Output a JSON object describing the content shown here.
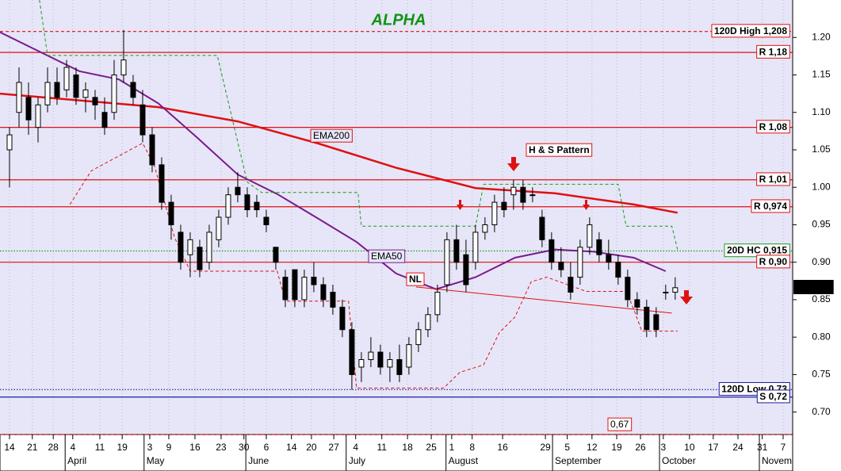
{
  "chart_data": {
    "type": "candlestick",
    "title": "ALPHA",
    "ylim": [
      0.67,
      1.25
    ],
    "yticks": [
      {
        "value": 0.7,
        "label": "0.70"
      },
      {
        "value": 0.75,
        "label": "0.75"
      },
      {
        "value": 0.8,
        "label": "0.80"
      },
      {
        "value": 0.85,
        "label": "0.85"
      },
      {
        "value": 0.9,
        "label": "0.90"
      },
      {
        "value": 0.95,
        "label": "0.95"
      },
      {
        "value": 1.0,
        "label": "1.00"
      },
      {
        "value": 1.05,
        "label": "1.05"
      },
      {
        "value": 1.1,
        "label": "1.10"
      },
      {
        "value": 1.15,
        "label": "1.15"
      },
      {
        "value": 1.2,
        "label": "1.20"
      }
    ],
    "xlim": [
      -2,
      164.7
    ],
    "xticks": [
      {
        "value": 0,
        "label": "14"
      },
      {
        "value": 4.8,
        "label": "21"
      },
      {
        "value": 9.2,
        "label": "28"
      },
      {
        "value": 13.3,
        "label": "4"
      },
      {
        "value": 19,
        "label": "11"
      },
      {
        "value": 23.7,
        "label": "19"
      },
      {
        "value": 29.5,
        "label": "3"
      },
      {
        "value": 33.5,
        "label": "9"
      },
      {
        "value": 39,
        "label": "16"
      },
      {
        "value": 44.5,
        "label": "23"
      },
      {
        "value": 49.3,
        "label": "30"
      },
      {
        "value": 54,
        "label": "6"
      },
      {
        "value": 59.3,
        "label": "14"
      },
      {
        "value": 63.5,
        "label": "20"
      },
      {
        "value": 68.2,
        "label": "27"
      },
      {
        "value": 72.8,
        "label": "4"
      },
      {
        "value": 78.3,
        "label": "11"
      },
      {
        "value": 83.7,
        "label": "18"
      },
      {
        "value": 88.7,
        "label": "25"
      },
      {
        "value": 93,
        "label": "1"
      },
      {
        "value": 97.3,
        "label": "8"
      },
      {
        "value": 103.7,
        "label": "16"
      },
      {
        "value": 112.7,
        "label": "29"
      },
      {
        "value": 117.3,
        "label": "5"
      },
      {
        "value": 122.5,
        "label": "12"
      },
      {
        "value": 127.7,
        "label": "19"
      },
      {
        "value": 132.7,
        "label": "26"
      },
      {
        "value": 137.5,
        "label": "3"
      },
      {
        "value": 143,
        "label": "10"
      },
      {
        "value": 148,
        "label": "17"
      },
      {
        "value": 153.2,
        "label": "24"
      },
      {
        "value": 158.3,
        "label": "31"
      },
      {
        "value": 162.7,
        "label": "7"
      }
    ],
    "months": [
      {
        "value": 11.7,
        "label": "April"
      },
      {
        "value": 28.3,
        "label": "May"
      },
      {
        "value": 49.7,
        "label": "June"
      },
      {
        "value": 70.8,
        "label": "July"
      },
      {
        "value": 91.8,
        "label": "August"
      },
      {
        "value": 114.2,
        "label": "September"
      },
      {
        "value": 136.7,
        "label": "October"
      },
      {
        "value": 157.7,
        "label": "Novem"
      }
    ],
    "grid": true,
    "up_color": "#ffffff",
    "down_color": "#000000",
    "x": [
      0,
      2,
      4,
      6,
      8,
      10,
      12,
      14,
      16,
      18,
      20,
      22,
      24,
      26,
      28,
      30,
      32,
      34,
      36,
      38,
      40,
      42,
      44,
      46,
      48,
      50,
      52,
      54,
      56,
      58,
      60,
      62,
      64,
      66,
      68,
      70,
      72,
      74,
      76,
      78,
      80,
      82,
      84,
      86,
      88,
      90,
      92,
      94,
      96,
      98,
      100,
      102,
      104,
      106,
      108,
      110,
      112,
      114,
      116,
      118,
      120,
      122,
      124,
      126,
      128,
      130,
      132,
      134,
      136,
      138,
      140
    ],
    "open": [
      1.05,
      1.1,
      1.12,
      1.08,
      1.11,
      1.14,
      1.13,
      1.15,
      1.12,
      1.12,
      1.1,
      1.1,
      1.15,
      1.14,
      1.11,
      1.07,
      1.03,
      0.98,
      0.94,
      0.91,
      0.92,
      0.9,
      0.93,
      0.96,
      1.0,
      0.99,
      0.98,
      0.96,
      0.92,
      0.88,
      0.89,
      0.85,
      0.88,
      0.87,
      0.86,
      0.84,
      0.81,
      0.76,
      0.77,
      0.78,
      0.76,
      0.77,
      0.76,
      0.79,
      0.81,
      0.83,
      0.87,
      0.93,
      0.91,
      0.9,
      0.94,
      0.95,
      0.98,
      0.99,
      1.0,
      0.99,
      0.96,
      0.93,
      0.9,
      0.88,
      0.88,
      0.92,
      0.93,
      0.91,
      0.9,
      0.88,
      0.85,
      0.84,
      0.83,
      0.86,
      0.86
    ],
    "high": [
      1.08,
      1.16,
      1.14,
      1.12,
      1.16,
      1.16,
      1.17,
      1.16,
      1.14,
      1.13,
      1.12,
      1.17,
      1.21,
      1.15,
      1.13,
      1.08,
      1.04,
      0.99,
      0.95,
      0.94,
      0.93,
      0.95,
      0.97,
      1.0,
      1.02,
      1.0,
      0.99,
      0.97,
      0.92,
      0.89,
      0.89,
      0.89,
      0.9,
      0.88,
      0.87,
      0.85,
      0.82,
      0.78,
      0.8,
      0.79,
      0.78,
      0.79,
      0.8,
      0.82,
      0.84,
      0.87,
      0.94,
      0.95,
      0.93,
      0.95,
      0.96,
      0.99,
      1.0,
      1.01,
      1.01,
      1.0,
      0.97,
      0.94,
      0.92,
      0.9,
      0.93,
      0.96,
      0.94,
      0.93,
      0.91,
      0.89,
      0.86,
      0.85,
      0.84,
      0.87,
      0.88
    ],
    "low": [
      1.0,
      1.08,
      1.07,
      1.06,
      1.1,
      1.11,
      1.12,
      1.11,
      1.1,
      1.09,
      1.07,
      1.09,
      1.14,
      1.11,
      1.06,
      1.02,
      0.97,
      0.93,
      0.89,
      0.88,
      0.88,
      0.89,
      0.92,
      0.95,
      0.98,
      0.96,
      0.96,
      0.94,
      0.89,
      0.84,
      0.84,
      0.84,
      0.86,
      0.84,
      0.83,
      0.8,
      0.73,
      0.74,
      0.76,
      0.75,
      0.74,
      0.74,
      0.75,
      0.78,
      0.8,
      0.82,
      0.86,
      0.89,
      0.86,
      0.89,
      0.93,
      0.94,
      0.96,
      0.97,
      0.97,
      0.98,
      0.92,
      0.89,
      0.88,
      0.85,
      0.87,
      0.91,
      0.9,
      0.89,
      0.87,
      0.84,
      0.83,
      0.8,
      0.8,
      0.85,
      0.85
    ],
    "close": [
      1.07,
      1.14,
      1.09,
      1.11,
      1.14,
      1.12,
      1.16,
      1.12,
      1.13,
      1.11,
      1.08,
      1.15,
      1.17,
      1.12,
      1.07,
      1.03,
      0.98,
      0.95,
      0.9,
      0.93,
      0.89,
      0.94,
      0.96,
      0.99,
      0.99,
      0.97,
      0.97,
      0.95,
      0.9,
      0.85,
      0.85,
      0.88,
      0.87,
      0.85,
      0.84,
      0.81,
      0.75,
      0.77,
      0.78,
      0.76,
      0.77,
      0.75,
      0.79,
      0.81,
      0.83,
      0.86,
      0.93,
      0.9,
      0.87,
      0.94,
      0.95,
      0.98,
      0.97,
      1.0,
      0.98,
      0.99,
      0.93,
      0.9,
      0.89,
      0.86,
      0.92,
      0.95,
      0.91,
      0.9,
      0.88,
      0.85,
      0.84,
      0.81,
      0.81,
      0.86,
      0.866
    ],
    "last_price": {
      "value": 0.866,
      "label": "0.86600"
    },
    "lines": [
      {
        "label": "EMA200",
        "color": "#e01010",
        "style": "solid",
        "width": 2.5,
        "x": [
          -2,
          31.3,
          48,
          64.7,
          81.3,
          98,
          114.7,
          131.3,
          140.5
        ],
        "values": [
          1.125,
          1.107,
          1.088,
          1.059,
          1.026,
          0.999,
          0.992,
          0.977,
          0.966
        ]
      },
      {
        "label": "EMA50",
        "color": "#7b1a8c",
        "style": "solid",
        "width": 2,
        "x": [
          -2,
          14.7,
          23,
          31.3,
          39.7,
          48,
          56.3,
          64.7,
          73,
          81.3,
          89.7,
          98,
          106.3,
          114.7,
          123,
          131.3,
          138
        ],
        "values": [
          1.207,
          1.155,
          1.144,
          1.112,
          1.065,
          1.017,
          0.991,
          0.959,
          0.927,
          0.885,
          0.864,
          0.88,
          0.906,
          0.917,
          0.914,
          0.906,
          0.888
        ]
      },
      {
        "label": "NL",
        "color": "#e01010",
        "style": "solid",
        "width": 1,
        "x": [
          85.5,
          139.3
        ],
        "values": [
          0.867,
          0.832
        ]
      },
      {
        "color": "#1a9a1a",
        "style": "dashed",
        "width": 1,
        "x": [
          6.3,
          8,
          43.7,
          50,
          53,
          73.3,
          74,
          91.3,
          98,
          99.7,
          128,
          129.7,
          139.3,
          140.5
        ],
        "values": [
          1.25,
          1.176,
          1.176,
          1.007,
          0.993,
          0.993,
          0.948,
          0.948,
          0.948,
          1.004,
          1.004,
          0.948,
          0.948,
          0.917
        ]
      },
      {
        "color": "#e01010",
        "style": "dashed",
        "width": 1,
        "x": [
          12.7,
          17.2,
          28,
          30.5,
          34.7,
          38,
          56.3,
          58,
          71.3,
          73,
          91.3,
          94.7,
          99.7,
          103,
          106.3,
          109.7,
          113,
          121.3,
          129.7,
          131.3,
          133,
          140.5
        ],
        "values": [
          0.977,
          1.022,
          1.059,
          1.028,
          0.933,
          0.888,
          0.888,
          0.848,
          0.848,
          0.732,
          0.732,
          0.753,
          0.763,
          0.806,
          0.827,
          0.874,
          0.88,
          0.861,
          0.861,
          0.837,
          0.808,
          0.808
        ]
      }
    ],
    "levels": [
      {
        "label": "120D High 1,208",
        "value": 1.208,
        "color": "#e01010",
        "style": "dashed"
      },
      {
        "label": "R 1,18",
        "value": 1.18,
        "color": "#e01010",
        "style": "solid"
      },
      {
        "label": "R 1,08",
        "value": 1.08,
        "color": "#e01010",
        "style": "solid"
      },
      {
        "label": "R 1,01",
        "value": 1.01,
        "color": "#e01010",
        "style": "solid"
      },
      {
        "label": "R 0,974",
        "value": 0.974,
        "color": "#e01010",
        "style": "solid"
      },
      {
        "label": "20D HC 0,915",
        "value": 0.915,
        "color": "#1a9a1a",
        "style": "dotted"
      },
      {
        "label": "R 0,90",
        "value": 0.9,
        "color": "#e01010",
        "style": "solid"
      },
      {
        "label": "120D Low 0,73",
        "value": 0.73,
        "color": "#1a1aa0",
        "style": "dotted"
      },
      {
        "label": "S 0,72",
        "value": 0.72,
        "color": "#1a1aa0",
        "style": "solid"
      },
      {
        "label": "0,67",
        "value": 0.67,
        "color": "#e01010",
        "style": "dashed"
      }
    ],
    "annotations": [
      "H & S Pattern"
    ]
  }
}
